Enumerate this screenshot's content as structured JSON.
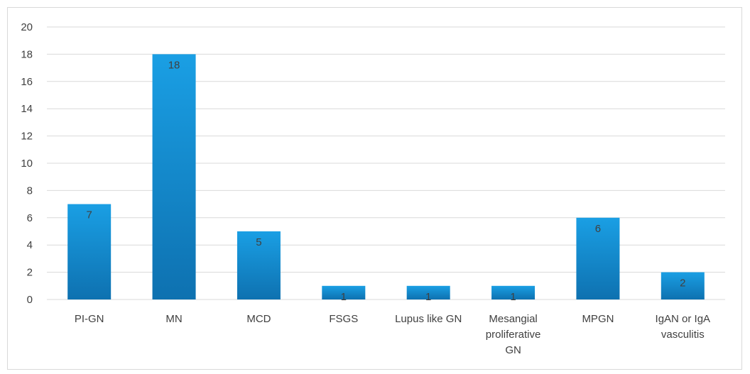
{
  "chart_data": {
    "type": "bar",
    "categories": [
      "PI-GN",
      "MN",
      "MCD",
      "FSGS",
      "Lupus like GN",
      "Mesangial proliferative GN",
      "MPGN",
      "IgAN or IgA vasculitis"
    ],
    "category_label_lines": [
      [
        "PI-GN"
      ],
      [
        "MN"
      ],
      [
        "MCD"
      ],
      [
        "FSGS"
      ],
      [
        "Lupus like GN"
      ],
      [
        "Mesangial",
        "proliferative",
        "GN"
      ],
      [
        "MPGN"
      ],
      [
        "IgAN or IgA",
        "vasculitis"
      ]
    ],
    "values": [
      7,
      18,
      5,
      1,
      1,
      1,
      6,
      2
    ],
    "data_labels": [
      "7",
      "18",
      "5",
      "1",
      "1",
      "1",
      "6",
      "2"
    ],
    "title": "",
    "xlabel": "",
    "ylabel": "",
    "ylim": [
      0,
      20
    ],
    "yticks": [
      0,
      2,
      4,
      6,
      8,
      10,
      12,
      14,
      16,
      18,
      20
    ],
    "ytick_labels": [
      "0",
      "2",
      "4",
      "6",
      "8",
      "10",
      "12",
      "14",
      "16",
      "18",
      "20"
    ],
    "grid": true,
    "legend": "none",
    "colors": {
      "bar_top": "#1a9fe4",
      "bar_bottom": "#0e71b0",
      "gridline": "#d9d9d9",
      "axis_text": "#404040",
      "data_label": "#404040"
    }
  }
}
